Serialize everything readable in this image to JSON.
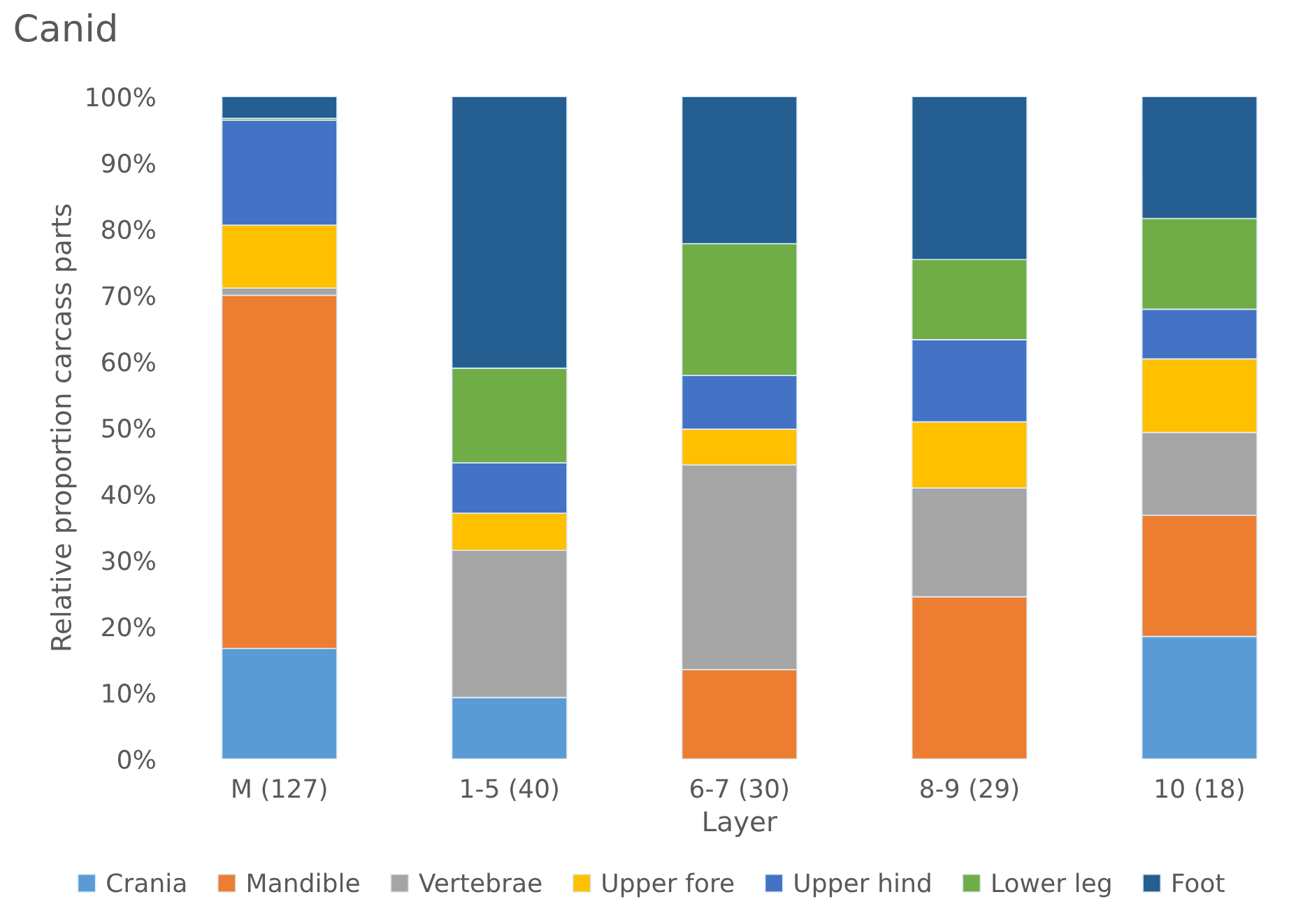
{
  "chart_data": {
    "type": "bar",
    "title": "Canid",
    "xlabel": "Layer",
    "ylabel": "Relative proportion carcass parts",
    "stacked": true,
    "legend": "bottom",
    "grid": false,
    "categories": [
      "M (127)",
      "1-5 (40)",
      "6-7 (30)",
      "8-9 (29)",
      "10 (18)"
    ],
    "ylim": [
      0,
      100
    ],
    "yticks": [
      {
        "value": 0,
        "label": "0%"
      },
      {
        "value": 10,
        "label": "10%"
      },
      {
        "value": 20,
        "label": "20%"
      },
      {
        "value": 30,
        "label": "30%"
      },
      {
        "value": 40,
        "label": "40%"
      },
      {
        "value": 50,
        "label": "50%"
      },
      {
        "value": 60,
        "label": "60%"
      },
      {
        "value": 70,
        "label": "70%"
      },
      {
        "value": 80,
        "label": "80%"
      },
      {
        "value": 90,
        "label": "90%"
      },
      {
        "value": 100,
        "label": "100%"
      }
    ],
    "series": [
      {
        "name": "Crania",
        "color": "#5b9bd5",
        "values": [
          16.7,
          9.3,
          0,
          0,
          18.5
        ]
      },
      {
        "name": "Mandible",
        "color": "#ed7d31",
        "values": [
          53.3,
          0,
          13.5,
          24.5,
          18.3
        ]
      },
      {
        "name": "Vertebrae",
        "color": "#a5a5a5",
        "values": [
          1.1,
          22.2,
          30.9,
          16.4,
          12.5
        ]
      },
      {
        "name": "Upper fore",
        "color": "#ffc000",
        "values": [
          9.5,
          5.6,
          5.4,
          10.0,
          11.1
        ]
      },
      {
        "name": "Upper hind",
        "color": "#4472c4",
        "values": [
          15.8,
          7.6,
          8.1,
          12.4,
          7.5
        ]
      },
      {
        "name": "Lower leg",
        "color": "#70ad47",
        "values": [
          0.3,
          14.3,
          19.9,
          12.1,
          13.7
        ]
      },
      {
        "name": "Foot",
        "color": "#255e91",
        "values": [
          3.3,
          41.0,
          22.2,
          24.6,
          18.4
        ]
      }
    ]
  }
}
